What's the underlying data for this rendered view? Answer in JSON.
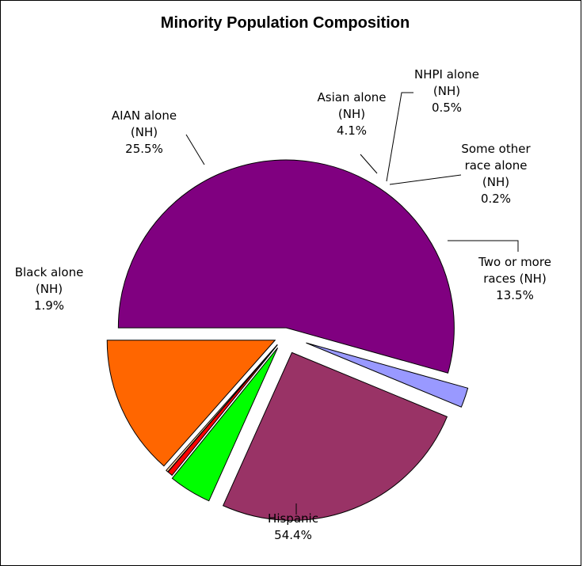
{
  "chart_data": {
    "type": "pie",
    "title": "Minority Population Composition",
    "start_angle_deg": 180,
    "slices": [
      {
        "lines": [
          "Hispanic",
          "54.4%"
        ],
        "value": 54.4,
        "color": "#800080",
        "key": "hispanic"
      },
      {
        "lines": [
          "Black alone",
          "(NH)",
          "1.9%"
        ],
        "value": 1.9,
        "color": "#9999ff",
        "key": "black"
      },
      {
        "lines": [
          "AIAN alone",
          "(NH)",
          "25.5%"
        ],
        "value": 25.5,
        "color": "#993366",
        "key": "aian"
      },
      {
        "lines": [
          "Asian alone",
          "(NH)",
          "4.1%"
        ],
        "value": 4.1,
        "color": "#00ff00",
        "key": "asian"
      },
      {
        "lines": [
          "NHPI alone",
          "(NH)",
          "0.5%"
        ],
        "value": 0.5,
        "color": "#ff0000",
        "key": "nhpi"
      },
      {
        "lines": [
          "Some other",
          "race alone",
          "(NH)",
          "0.2%"
        ],
        "value": 0.2,
        "color": "#ffcc99",
        "key": "other"
      },
      {
        "lines": [
          "Two or more",
          "races (NH)",
          "13.5%"
        ],
        "value": 13.5,
        "color": "#ff6600",
        "key": "two-or-more"
      }
    ]
  }
}
